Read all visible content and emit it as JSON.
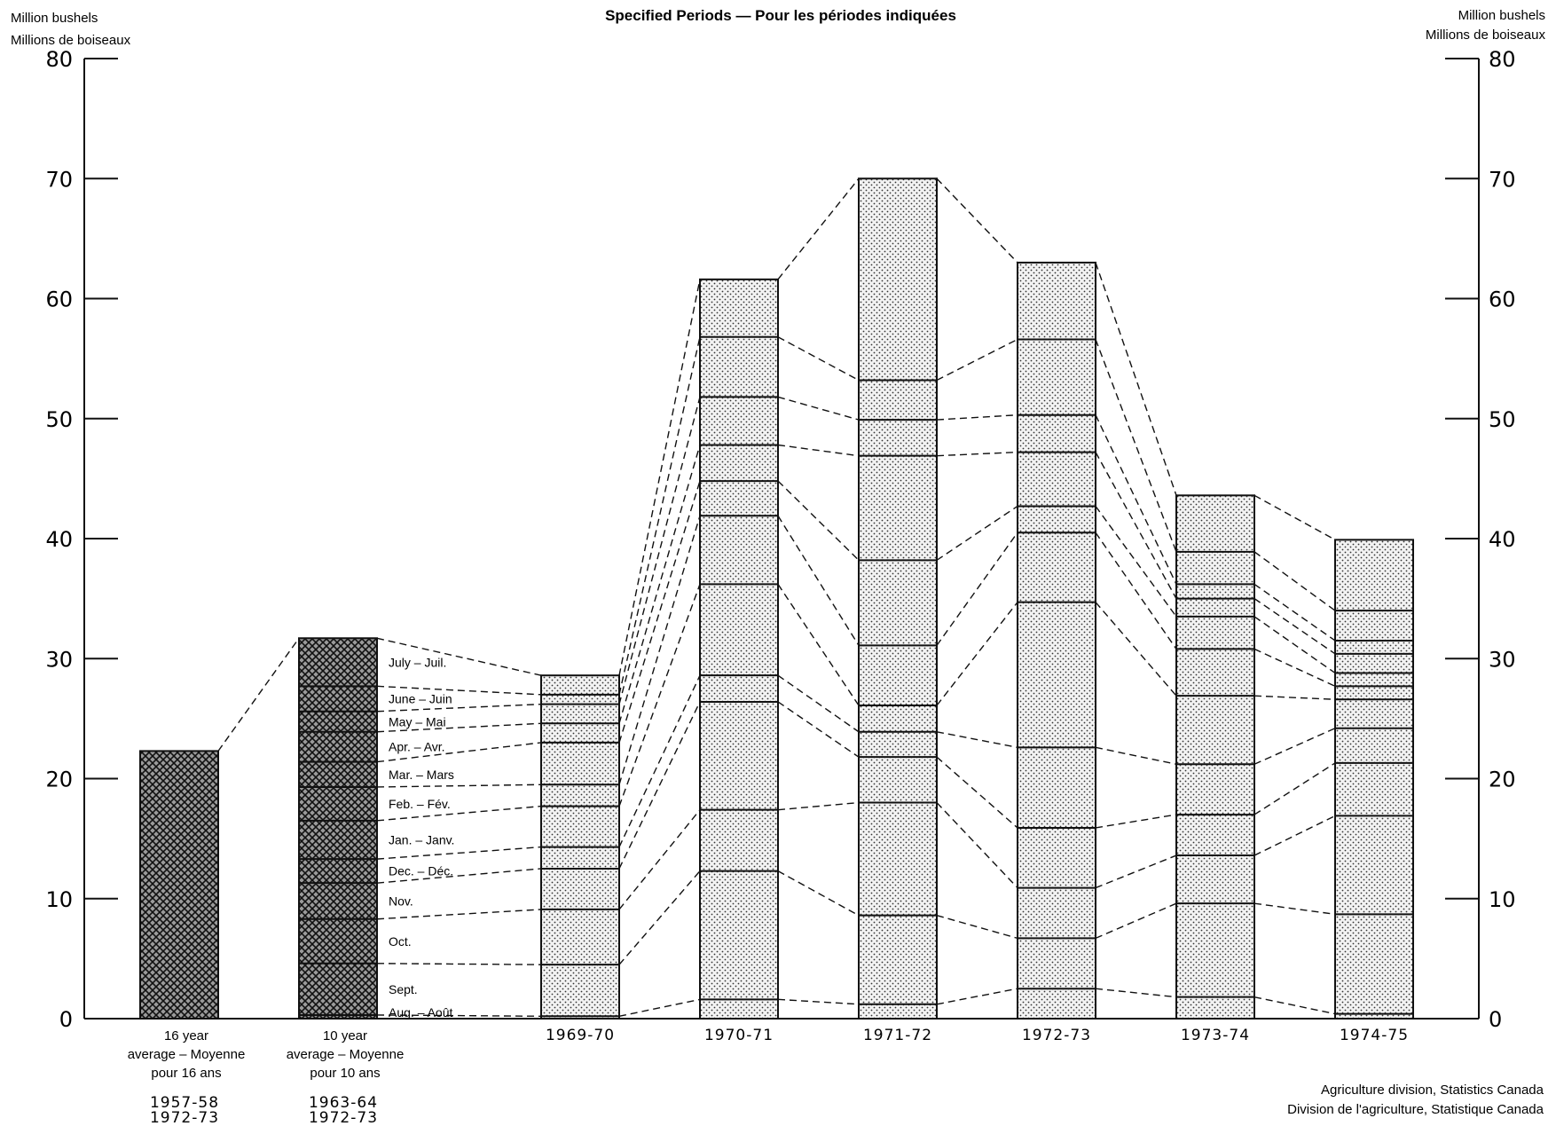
{
  "title": "Specified Periods — Pour les périodes indiquées",
  "axis_unit": {
    "left_line1": "Million bushels",
    "left_line2": "Millions de boiseaux",
    "right_line1": "Million bushels",
    "right_line2": "Millions de boiseaux"
  },
  "source": {
    "line1": "Agriculture division, Statistics Canada",
    "line2": "Division de l'agriculture, Statistique Canada"
  },
  "colors": {
    "ink": "#111111",
    "fill": "#ececec"
  },
  "chart_data": {
    "type": "bar",
    "ylim": [
      0,
      80
    ],
    "yticks": [
      "0",
      "10",
      "20",
      "30",
      "40",
      "50",
      "60",
      "70",
      "80"
    ],
    "months": [
      "Aug. – Août",
      "Sept.",
      "Oct.",
      "Nov.",
      "Dec. – Déc.",
      "Jan. – Janv.",
      "Feb. – Fév.",
      "Mar. – Mars",
      "Apr. – Avr.",
      "May – Mai",
      "June – Juin",
      "July – Juil."
    ],
    "categories": [
      {
        "label_lines": [
          "16 year",
          "average – Moyenne",
          "pour 16 ans"
        ],
        "period_lines": [
          "1957-58",
          "1972-73"
        ],
        "pattern": "crosshatch",
        "cumulative": [
          22.3
        ]
      },
      {
        "label_lines": [
          "10 year",
          "average – Moyenne",
          "pour 10 ans"
        ],
        "period_lines": [
          "1963-64",
          "1972-73"
        ],
        "pattern": "crosshatch",
        "cumulative": [
          0.3,
          4.6,
          8.3,
          11.3,
          13.3,
          16.5,
          19.3,
          21.4,
          23.9,
          25.6,
          27.7,
          31.7
        ]
      },
      {
        "label_lines": [
          "1969-70"
        ],
        "period_lines": [],
        "pattern": "dots",
        "cumulative": [
          0.2,
          4.5,
          9.1,
          12.5,
          14.3,
          17.7,
          19.5,
          23.0,
          24.6,
          26.2,
          27.0,
          28.6
        ]
      },
      {
        "label_lines": [
          "1970-71"
        ],
        "period_lines": [],
        "pattern": "dots",
        "cumulative": [
          1.6,
          12.3,
          17.4,
          26.4,
          28.6,
          36.2,
          41.9,
          44.8,
          47.8,
          51.8,
          56.8,
          61.6
        ]
      },
      {
        "label_lines": [
          "1971-72"
        ],
        "period_lines": [],
        "pattern": "dots",
        "cumulative": [
          1.2,
          8.6,
          18.0,
          21.8,
          23.9,
          26.1,
          31.1,
          38.2,
          46.9,
          49.9,
          53.2,
          70.0
        ]
      },
      {
        "label_lines": [
          "1972-73"
        ],
        "period_lines": [],
        "pattern": "dots",
        "cumulative": [
          2.5,
          6.7,
          10.9,
          15.9,
          22.6,
          34.7,
          40.5,
          42.7,
          47.2,
          50.3,
          56.6,
          63.0
        ]
      },
      {
        "label_lines": [
          "1973-74"
        ],
        "period_lines": [],
        "pattern": "dots",
        "cumulative": [
          1.8,
          9.6,
          13.6,
          17.0,
          21.2,
          26.9,
          30.8,
          33.5,
          35.0,
          36.2,
          38.9,
          43.6
        ]
      },
      {
        "label_lines": [
          "1974-75"
        ],
        "period_lines": [],
        "pattern": "dots",
        "cumulative": [
          0.4,
          8.7,
          16.9,
          21.3,
          24.2,
          26.6,
          27.7,
          28.8,
          30.4,
          31.5,
          34.0,
          39.9
        ]
      }
    ]
  }
}
